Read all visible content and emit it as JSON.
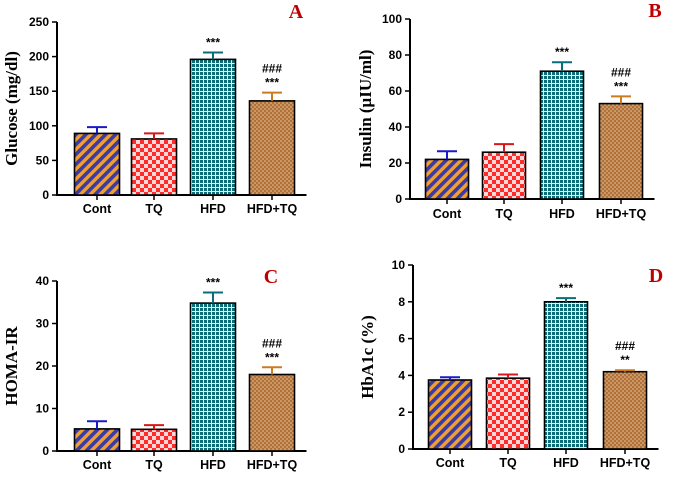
{
  "colors": {
    "cont_stripe_a": "#f0a030",
    "cont_stripe_b": "#3a3aa8",
    "tq_a": "#ff2a2a",
    "tq_b": "#ffd8d8",
    "hfd_cell": "#0c6e78",
    "hfd_grid": "#e9f6f6",
    "hfdtq_base": "#b07038",
    "hfdtq_dots": "#e8c8a0",
    "err_cont": "#1a1ac8",
    "err_tq": "#d81818",
    "err_hfd": "#0a6e78",
    "err_hfdtq": "#cc7a20",
    "panel_letter": "#c00000"
  },
  "chart_data": [
    {
      "type": "bar",
      "panel": "A",
      "ylabel": "Glucose (mg/dl)",
      "categories": [
        "Cont",
        "TQ",
        "HFD",
        "HFD+TQ"
      ],
      "values": [
        89,
        81,
        196,
        136
      ],
      "errors": [
        9,
        8,
        10,
        12
      ],
      "ylim": [
        0,
        250
      ],
      "yticks": [
        0,
        50,
        100,
        150,
        200,
        250
      ],
      "annotations": [
        {
          "category": "HFD",
          "lines": [
            "***"
          ]
        },
        {
          "category": "HFD+TQ",
          "lines": [
            "###",
            "***"
          ]
        }
      ]
    },
    {
      "type": "bar",
      "panel": "B",
      "ylabel": "Insulin (μIU/ml)",
      "categories": [
        "Cont",
        "TQ",
        "HFD",
        "HFD+TQ"
      ],
      "values": [
        22,
        26,
        71,
        53
      ],
      "errors": [
        4.5,
        4.5,
        5,
        4
      ],
      "ylim": [
        0,
        100
      ],
      "yticks": [
        0,
        20,
        40,
        60,
        80,
        100
      ],
      "annotations": [
        {
          "category": "HFD",
          "lines": [
            "***"
          ]
        },
        {
          "category": "HFD+TQ",
          "lines": [
            "###",
            "***"
          ]
        }
      ]
    },
    {
      "type": "bar",
      "panel": "C",
      "ylabel": "HOMA-IR",
      "categories": [
        "Cont",
        "TQ",
        "HFD",
        "HFD+TQ"
      ],
      "values": [
        5.2,
        5.1,
        34.8,
        18
      ],
      "errors": [
        1.8,
        1.0,
        2.5,
        1.7
      ],
      "ylim": [
        0,
        40
      ],
      "yticks": [
        0,
        10,
        20,
        30,
        40
      ],
      "annotations": [
        {
          "category": "HFD",
          "lines": [
            "***"
          ]
        },
        {
          "category": "HFD+TQ",
          "lines": [
            "###",
            "***"
          ]
        }
      ]
    },
    {
      "type": "bar",
      "panel": "D",
      "ylabel": "HbA1c (%)",
      "categories": [
        "Cont",
        "TQ",
        "HFD",
        "HFD+TQ"
      ],
      "values": [
        3.75,
        3.85,
        8.0,
        4.2
      ],
      "errors": [
        0.15,
        0.2,
        0.2,
        0.08
      ],
      "ylim": [
        0,
        10
      ],
      "yticks": [
        0,
        2,
        4,
        6,
        8,
        10
      ],
      "annotations": [
        {
          "category": "HFD",
          "lines": [
            "***"
          ]
        },
        {
          "category": "HFD+TQ",
          "lines": [
            "###",
            "**"
          ]
        }
      ]
    }
  ]
}
